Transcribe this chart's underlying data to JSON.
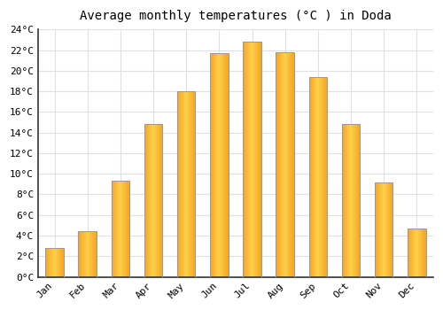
{
  "title": "Average monthly temperatures (°C ) in Doda",
  "months": [
    "Jan",
    "Feb",
    "Mar",
    "Apr",
    "May",
    "Jun",
    "Jul",
    "Aug",
    "Sep",
    "Oct",
    "Nov",
    "Dec"
  ],
  "temperatures": [
    2.8,
    4.4,
    9.3,
    14.8,
    18.0,
    21.7,
    22.8,
    21.8,
    19.4,
    14.8,
    9.2,
    4.7
  ],
  "bar_color_left": "#F5A623",
  "bar_color_center": "#FFD04A",
  "bar_color_right": "#F5A623",
  "bar_edge_color": "#A0855B",
  "ylim": [
    0,
    24
  ],
  "ytick_step": 2,
  "background_color": "#FFFFFF",
  "grid_color": "#E0E0E0",
  "title_fontsize": 10,
  "tick_fontsize": 8,
  "bar_width": 0.55
}
